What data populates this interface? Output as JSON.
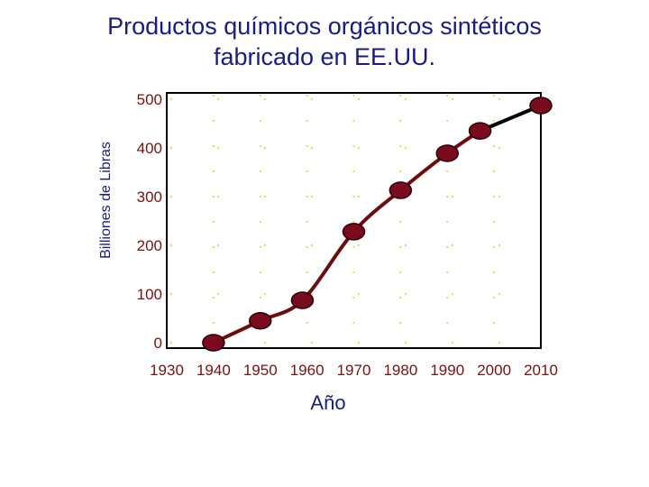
{
  "chart_data": {
    "type": "line",
    "title_line1": "Productos químicos orgánicos sintéticos",
    "title_line2": "fabricado en EE.UU.",
    "xlabel": "Año",
    "ylabel": "Billiones de Libras",
    "x_ticks": [
      "1930",
      "1940",
      "1950",
      "1960",
      "1970",
      "1980",
      "1990",
      "2000",
      "2010"
    ],
    "y_ticks": [
      "0",
      "100",
      "200",
      "300",
      "400",
      "500"
    ],
    "xlim": [
      1930,
      2010
    ],
    "ylim": [
      0,
      500
    ],
    "points": [
      {
        "x": 1940,
        "y": 0
      },
      {
        "x": 1950,
        "y": 45
      },
      {
        "x": 1959,
        "y": 87
      },
      {
        "x": 1970,
        "y": 228
      },
      {
        "x": 1980,
        "y": 313
      },
      {
        "x": 1990,
        "y": 389
      },
      {
        "x": 1997,
        "y": 435
      },
      {
        "x": 2010,
        "y": 487
      }
    ],
    "segment_colors": {
      "main": "#6e0c0c",
      "last": "#000000"
    },
    "marker_color": "#7a0a1e",
    "grid": "dotted-yellow"
  }
}
